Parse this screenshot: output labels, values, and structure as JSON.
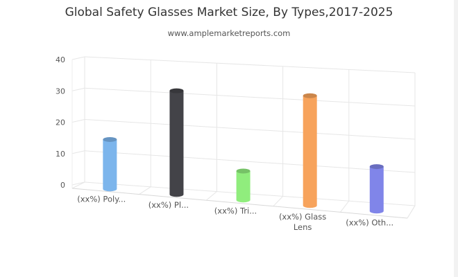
{
  "chart_data": {
    "type": "bar",
    "title": "Global Safety Glasses Market Size, By Types,2017-2025",
    "subtitle": "www.amplemarketreports.com",
    "categories": [
      [
        "(xx%) Poly..."
      ],
      [
        "(xx%) Pl..."
      ],
      [
        "(xx%) Tri..."
      ],
      [
        "(xx%) Glass",
        "Lens"
      ],
      [
        "(xx%) Oth..."
      ]
    ],
    "values": [
      14,
      29,
      8,
      30,
      12
    ],
    "ylim": [
      0,
      40
    ],
    "yticks": [
      0,
      10,
      20,
      30,
      40
    ],
    "grid": true,
    "legend": "none",
    "colors": [
      "#7cb5ec",
      "#434348",
      "#90ed7d",
      "#f7a35c",
      "#8085e9"
    ]
  }
}
